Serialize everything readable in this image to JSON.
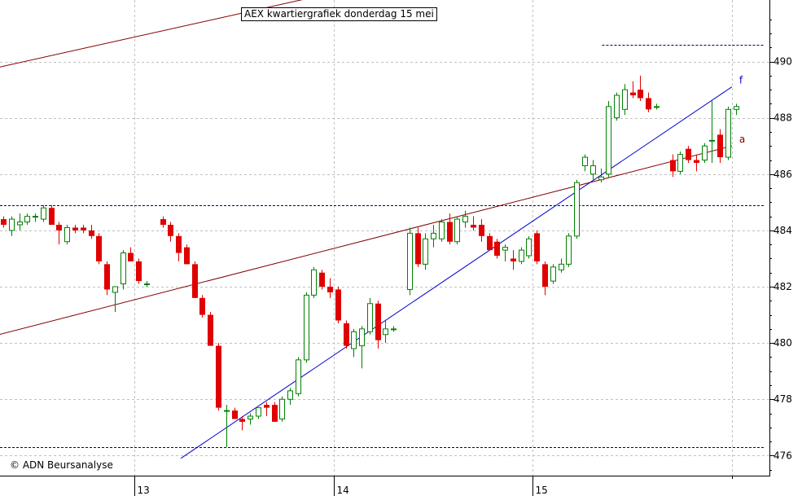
{
  "title": "AEX kwartiergrafiek donderdag 15 mei",
  "copyright": "© ADN Beursanalyse",
  "colors": {
    "up": "#008000",
    "down": "#e00000",
    "trend_a": "#800000",
    "trend_f": "#0000cc",
    "support_resistance": "#000080",
    "grid": "#c0c0c0",
    "axis": "#000000"
  },
  "chart_data": {
    "type": "candlestick",
    "interval": "15 minutes",
    "x_day_labels": [
      "13",
      "14",
      "15"
    ],
    "y_ticks": [
      476,
      478,
      480,
      482,
      484,
      486,
      488,
      490
    ],
    "ylim": [
      475.2,
      492.1
    ],
    "grid": true,
    "horizontal_levels": [
      476.3,
      484.9,
      490.6
    ],
    "trendlines": [
      {
        "label": "a",
        "from": [
          -0.5,
          480.3
        ],
        "to": [
          91.5,
          487.0
        ]
      },
      {
        "label": "f",
        "from": [
          22.3,
          475.9
        ],
        "to": [
          91.5,
          489.1
        ]
      }
    ],
    "upper_channel_line": {
      "from": [
        -0.5,
        489.8
      ],
      "to": [
        91.5,
        495.6
      ]
    },
    "candles": [
      [
        484.4,
        484.5,
        484.1,
        484.2
      ],
      [
        484.0,
        484.5,
        483.8,
        484.4
      ],
      [
        484.2,
        484.6,
        484.0,
        484.3
      ],
      [
        484.3,
        484.6,
        484.2,
        484.5
      ],
      [
        484.5,
        484.6,
        484.3,
        484.5
      ],
      [
        484.4,
        484.9,
        484.3,
        484.8
      ],
      [
        484.8,
        484.9,
        484.2,
        484.2
      ],
      [
        484.2,
        484.3,
        483.5,
        484.0
      ],
      [
        483.6,
        484.2,
        483.5,
        484.1
      ],
      [
        484.1,
        484.2,
        483.9,
        484.0
      ],
      [
        484.1,
        484.2,
        483.9,
        484.0
      ],
      [
        484.0,
        484.2,
        483.7,
        483.8
      ],
      [
        483.8,
        483.9,
        482.8,
        482.9
      ],
      [
        482.8,
        482.9,
        481.7,
        481.9
      ],
      [
        481.8,
        481.9,
        481.1,
        482.0
      ],
      [
        482.1,
        483.3,
        481.9,
        483.2
      ],
      [
        483.2,
        483.4,
        482.9,
        482.9
      ],
      [
        482.9,
        483.0,
        482.1,
        482.2
      ],
      [
        482.1,
        482.2,
        482.0,
        482.1
      ],
      null,
      [
        484.4,
        484.5,
        484.1,
        484.2
      ],
      [
        484.2,
        484.3,
        483.6,
        483.8
      ],
      [
        483.8,
        483.9,
        482.9,
        483.2
      ],
      [
        483.4,
        483.5,
        482.8,
        482.8
      ],
      [
        482.8,
        482.9,
        481.6,
        481.6
      ],
      [
        481.6,
        481.7,
        480.9,
        481.0
      ],
      [
        481.0,
        481.1,
        479.9,
        479.9
      ],
      [
        479.9,
        480.0,
        477.6,
        477.7
      ],
      [
        477.6,
        477.8,
        476.3,
        477.6
      ],
      [
        477.6,
        477.7,
        477.3,
        477.3
      ],
      [
        477.3,
        477.4,
        476.9,
        477.2
      ],
      [
        477.3,
        477.5,
        477.1,
        477.4
      ],
      [
        477.4,
        477.7,
        477.3,
        477.7
      ],
      [
        477.8,
        477.9,
        477.4,
        477.7
      ],
      [
        477.8,
        477.9,
        477.2,
        477.2
      ],
      [
        477.3,
        478.1,
        477.2,
        478.0
      ],
      [
        478.0,
        478.4,
        477.8,
        478.3
      ],
      [
        478.2,
        479.5,
        478.1,
        479.4
      ],
      [
        479.4,
        481.8,
        479.3,
        481.7
      ],
      [
        481.7,
        482.7,
        481.6,
        482.6
      ],
      [
        482.5,
        482.6,
        481.9,
        482.0
      ],
      [
        482.0,
        482.3,
        481.6,
        481.8
      ],
      [
        481.9,
        482.0,
        480.7,
        480.8
      ],
      [
        480.7,
        480.8,
        479.8,
        479.9
      ],
      [
        479.8,
        480.5,
        479.5,
        480.4
      ],
      [
        479.9,
        480.6,
        479.1,
        480.5
      ],
      [
        480.4,
        481.6,
        480.3,
        481.4
      ],
      [
        481.4,
        481.5,
        479.8,
        480.1
      ],
      [
        480.3,
        480.8,
        480.0,
        480.5
      ],
      [
        480.5,
        480.6,
        480.4,
        480.5
      ],
      null,
      [
        481.9,
        484.1,
        481.7,
        483.9
      ],
      [
        483.9,
        484.1,
        482.7,
        482.8
      ],
      [
        482.8,
        483.9,
        482.6,
        483.7
      ],
      [
        483.7,
        484.2,
        483.4,
        483.9
      ],
      [
        483.7,
        484.4,
        483.6,
        484.3
      ],
      [
        484.3,
        484.6,
        483.5,
        483.6
      ],
      [
        483.6,
        484.5,
        483.5,
        484.4
      ],
      [
        484.3,
        484.7,
        484.1,
        484.5
      ],
      [
        484.2,
        484.5,
        484.0,
        484.1
      ],
      [
        484.2,
        484.4,
        483.6,
        483.8
      ],
      [
        483.8,
        483.9,
        483.3,
        483.3
      ],
      [
        483.6,
        483.7,
        483.0,
        483.1
      ],
      [
        483.3,
        483.5,
        482.9,
        483.4
      ],
      [
        483.0,
        483.3,
        482.6,
        482.9
      ],
      [
        482.9,
        483.4,
        482.8,
        483.3
      ],
      [
        483.1,
        483.8,
        483.0,
        483.7
      ],
      [
        483.9,
        484.0,
        482.8,
        482.9
      ],
      [
        482.8,
        482.9,
        481.7,
        482.0
      ],
      [
        482.2,
        482.8,
        482.1,
        482.7
      ],
      [
        482.6,
        483.0,
        482.5,
        482.8
      ],
      [
        482.8,
        483.9,
        482.7,
        483.8
      ],
      [
        483.8,
        485.8,
        483.7,
        485.7
      ],
      [
        486.3,
        486.7,
        486.1,
        486.6
      ],
      [
        486.0,
        486.5,
        485.8,
        486.3
      ],
      [
        485.8,
        486.2,
        485.7,
        485.9
      ],
      [
        486.0,
        488.6,
        485.9,
        488.4
      ],
      [
        488.0,
        488.9,
        487.9,
        488.8
      ],
      [
        488.3,
        489.2,
        488.1,
        489.0
      ],
      [
        488.9,
        489.3,
        488.7,
        488.8
      ],
      [
        489.0,
        489.5,
        488.6,
        488.7
      ],
      [
        488.7,
        488.9,
        488.2,
        488.3
      ],
      [
        488.4,
        488.5,
        488.3,
        488.4
      ],
      null,
      [
        486.5,
        486.7,
        485.9,
        486.1
      ],
      [
        486.1,
        486.8,
        486.0,
        486.7
      ],
      [
        486.9,
        487.0,
        486.4,
        486.5
      ],
      [
        486.5,
        486.7,
        486.1,
        486.4
      ],
      [
        486.5,
        487.1,
        486.4,
        487.0
      ],
      [
        487.2,
        488.6,
        486.4,
        487.2
      ],
      [
        487.4,
        487.6,
        486.4,
        486.6
      ],
      [
        486.6,
        488.4,
        486.5,
        488.3
      ],
      [
        488.3,
        488.5,
        488.1,
        488.4
      ]
    ]
  }
}
